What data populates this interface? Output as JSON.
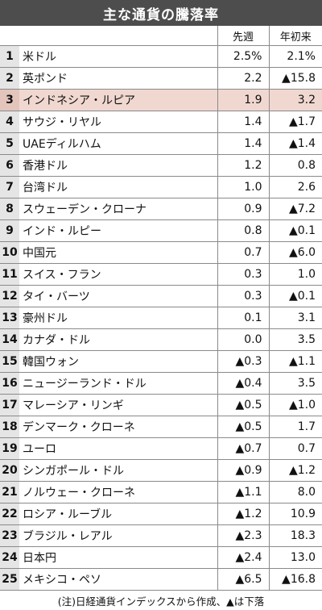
{
  "title": "主な通貨の騰落率",
  "columns": {
    "week": "先週",
    "ytd": "年初来"
  },
  "note": "(注)日経通貨インデックスから作成、▲は下落",
  "highlight_color": "#f0d8d0",
  "chart_data": {
    "type": "table",
    "title": "主な通貨の騰落率",
    "columns": [
      "",
      "",
      "先週",
      "年初来"
    ],
    "rows": [
      {
        "rank": "1",
        "name": "米ドル",
        "week": "2.5%",
        "ytd": "2.1%"
      },
      {
        "rank": "2",
        "name": "英ポンド",
        "week": "2.2",
        "ytd": "▲15.8"
      },
      {
        "rank": "3",
        "name": "インドネシア・ルピア",
        "week": "1.9",
        "ytd": "3.2",
        "highlight": true
      },
      {
        "rank": "4",
        "name": "サウジ・リヤル",
        "week": "1.4",
        "ytd": "▲1.7"
      },
      {
        "rank": "5",
        "name": "UAEディルハム",
        "week": "1.4",
        "ytd": "▲1.4"
      },
      {
        "rank": "6",
        "name": "香港ドル",
        "week": "1.2",
        "ytd": "0.8"
      },
      {
        "rank": "7",
        "name": "台湾ドル",
        "week": "1.0",
        "ytd": "2.6"
      },
      {
        "rank": "8",
        "name": "スウェーデン・クローナ",
        "week": "0.9",
        "ytd": "▲7.2"
      },
      {
        "rank": "9",
        "name": "インド・ルピー",
        "week": "0.8",
        "ytd": "▲0.1"
      },
      {
        "rank": "10",
        "name": "中国元",
        "week": "0.7",
        "ytd": "▲6.0"
      },
      {
        "rank": "11",
        "name": "スイス・フラン",
        "week": "0.3",
        "ytd": "1.0"
      },
      {
        "rank": "12",
        "name": "タイ・バーツ",
        "week": "0.3",
        "ytd": "▲0.1"
      },
      {
        "rank": "13",
        "name": "豪州ドル",
        "week": "0.1",
        "ytd": "3.1"
      },
      {
        "rank": "14",
        "name": "カナダ・ドル",
        "week": "0.0",
        "ytd": "3.5"
      },
      {
        "rank": "15",
        "name": "韓国ウォン",
        "week": "▲0.3",
        "ytd": "▲1.1"
      },
      {
        "rank": "16",
        "name": "ニュージーランド・ドル",
        "week": "▲0.4",
        "ytd": "3.5"
      },
      {
        "rank": "17",
        "name": "マレーシア・リンギ",
        "week": "▲0.5",
        "ytd": "▲1.0"
      },
      {
        "rank": "18",
        "name": "デンマーク・クローネ",
        "week": "▲0.5",
        "ytd": "1.7"
      },
      {
        "rank": "19",
        "name": "ユーロ",
        "week": "▲0.7",
        "ytd": "0.7"
      },
      {
        "rank": "20",
        "name": "シンガポール・ドル",
        "week": "▲0.9",
        "ytd": "▲1.2"
      },
      {
        "rank": "21",
        "name": "ノルウェー・クローネ",
        "week": "▲1.1",
        "ytd": "8.0"
      },
      {
        "rank": "22",
        "name": "ロシア・ルーブル",
        "week": "▲1.2",
        "ytd": "10.9"
      },
      {
        "rank": "23",
        "name": "ブラジル・レアル",
        "week": "▲2.3",
        "ytd": "18.3"
      },
      {
        "rank": "24",
        "name": "日本円",
        "week": "▲2.4",
        "ytd": "13.0"
      },
      {
        "rank": "25",
        "name": "メキシコ・ペソ",
        "week": "▲6.5",
        "ytd": "▲16.8"
      }
    ]
  }
}
